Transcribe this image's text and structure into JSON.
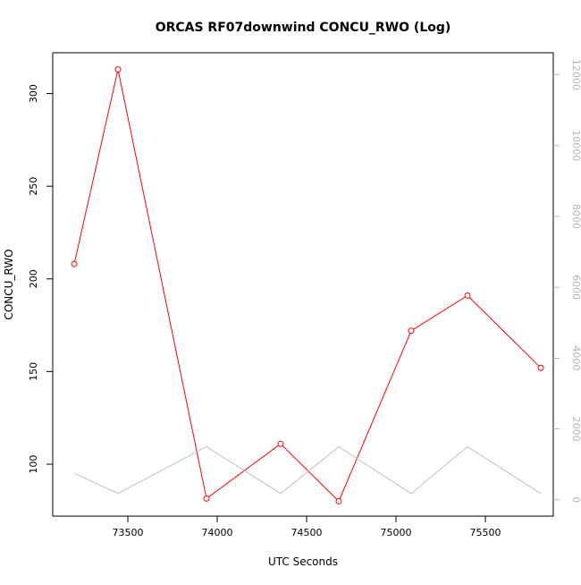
{
  "chart_data": {
    "type": "line",
    "title": "ORCAS RF07downwind CONCU_RWO (Log)",
    "xlabel": "UTC Seconds",
    "ylabel": "CONCU_RWO",
    "xlim": [
      73080,
      75880
    ],
    "ylim": [
      72,
      322
    ],
    "y2lim": [
      -460,
      12620
    ],
    "x_ticks": [
      73500,
      74000,
      74500,
      75000,
      75500
    ],
    "y_ticks": [
      100,
      150,
      200,
      250,
      300
    ],
    "y2_ticks": [
      0,
      2000,
      4000,
      6000,
      8000,
      10000,
      12000
    ],
    "grid": false,
    "series": [
      {
        "color": "#ff0000",
        "axis": "left",
        "markers": true,
        "x": [
          73200,
          73445,
          73940,
          74355,
          74680,
          75085,
          75400,
          75810
        ],
        "y": [
          208,
          313,
          81.5,
          111,
          80,
          172,
          191,
          152
        ]
      },
      {
        "color": "#c0c0c0",
        "axis": "right",
        "markers": false,
        "x": [
          73200,
          73445,
          73940,
          74355,
          74680,
          75085,
          75400,
          75810
        ],
        "y": [
          750,
          180,
          1500,
          180,
          1500,
          180,
          1500,
          180
        ]
      }
    ]
  }
}
